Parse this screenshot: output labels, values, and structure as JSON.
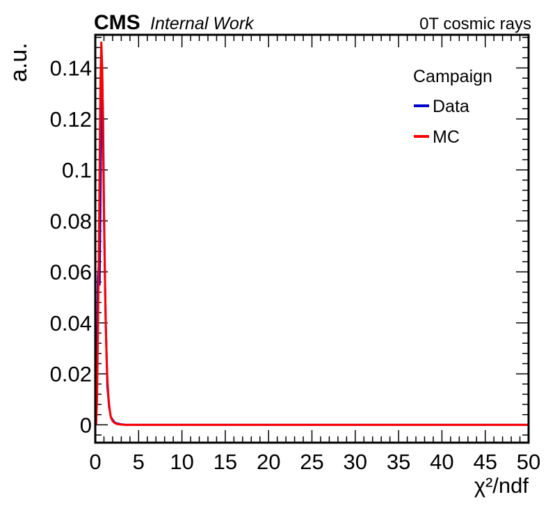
{
  "header": {
    "experiment": "CMS",
    "status": "Internal Work",
    "condition": "0T cosmic rays"
  },
  "chart_data": {
    "type": "line",
    "xlabel": "χ²/ndf",
    "ylabel": "a.u.",
    "xlim": [
      0,
      50
    ],
    "ylim": [
      -0.007,
      0.153
    ],
    "x_ticks": [
      "0",
      "5",
      "10",
      "15",
      "20",
      "25",
      "30",
      "35",
      "40",
      "45",
      "50"
    ],
    "y_ticks": [
      "0",
      "0.02",
      "0.04",
      "0.06",
      "0.08",
      "0.1",
      "0.12",
      "0.14"
    ],
    "legend": {
      "title": "Campaign",
      "position": "top-right",
      "entries": [
        "Data",
        "MC"
      ]
    },
    "series": [
      {
        "name": "Data",
        "color": "#0000cc",
        "x": [
          0.1,
          0.2,
          0.3,
          0.4,
          0.5,
          0.6,
          0.7,
          0.8,
          0.9,
          1.0,
          1.1,
          1.2,
          1.3,
          1.4,
          1.5,
          1.6,
          1.7,
          1.8,
          2.0,
          2.2,
          2.5,
          3.0,
          3.5,
          4.0,
          5.0,
          50.0
        ],
        "y": [
          0.0,
          0.02,
          0.058,
          0.062,
          0.055,
          0.09,
          0.131,
          0.137,
          0.12,
          0.085,
          0.062,
          0.04,
          0.028,
          0.015,
          0.011,
          0.007,
          0.005,
          0.003,
          0.002,
          0.001,
          0.0005,
          0.0002,
          0.0,
          0.0,
          0.0,
          0.0
        ]
      },
      {
        "name": "MC",
        "color": "#ff0000",
        "x": [
          0.1,
          0.2,
          0.3,
          0.4,
          0.5,
          0.6,
          0.7,
          0.8,
          0.9,
          1.0,
          1.1,
          1.2,
          1.3,
          1.4,
          1.5,
          1.6,
          1.7,
          1.8,
          2.0,
          2.2,
          2.5,
          3.0,
          3.5,
          4.0,
          5.0,
          50.0
        ],
        "y": [
          0.0,
          0.01,
          0.035,
          0.065,
          0.1,
          0.135,
          0.15,
          0.14,
          0.11,
          0.082,
          0.06,
          0.04,
          0.027,
          0.018,
          0.012,
          0.008,
          0.005,
          0.003,
          0.0015,
          0.0008,
          0.0003,
          0.0001,
          0.0,
          0.0,
          0.0,
          0.0
        ]
      }
    ]
  }
}
